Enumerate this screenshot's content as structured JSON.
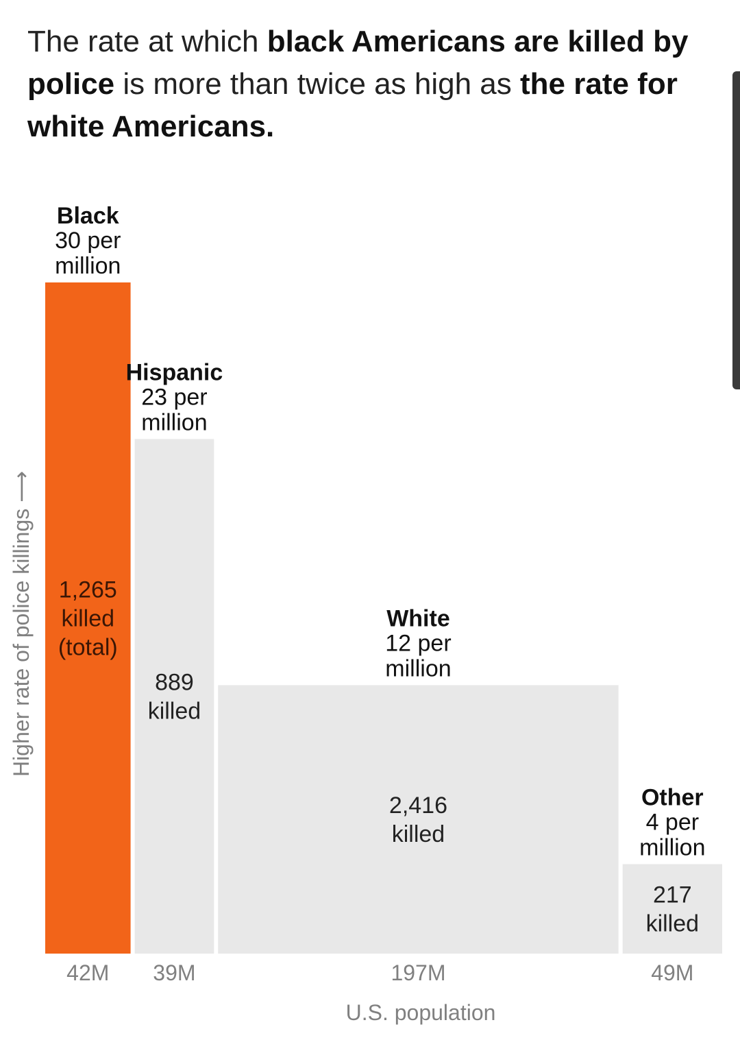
{
  "title": {
    "part1": "The rate at which ",
    "bold1": "black Americans are killed by police",
    "part2": " is more than twice as high as ",
    "bold2": "the rate for white Americans."
  },
  "chart_data": {
    "type": "bar",
    "variant": "marimekko (bar width = population, bar height = rate)",
    "xlabel": "U.S. population",
    "ylabel": "Higher rate of police killings ⟶",
    "ylim": [
      0,
      30
    ],
    "grid": false,
    "legend": "none",
    "categories": [
      "Black",
      "Hispanic",
      "White",
      "Other"
    ],
    "series": [
      {
        "name": "Rate (per million)",
        "values": [
          30,
          23,
          12,
          4
        ]
      },
      {
        "name": "Population (M)",
        "values": [
          42,
          39,
          197,
          49
        ]
      },
      {
        "name": "Killed",
        "values": [
          1265,
          889,
          2416,
          217
        ]
      }
    ],
    "bars": [
      {
        "name": "Black",
        "rate": 30,
        "rate_label": "30 per",
        "rate_unit": "million",
        "population": 42,
        "pop_label": "42M",
        "killed_lines": [
          "1,265",
          "killed",
          "(total)"
        ],
        "color": "#F26419",
        "highlight": true
      },
      {
        "name": "Hispanic",
        "rate": 23,
        "rate_label": "23 per",
        "rate_unit": "million",
        "population": 39,
        "pop_label": "39M",
        "killed_lines": [
          "889",
          "killed"
        ],
        "color": "#E8E8E8",
        "highlight": false
      },
      {
        "name": "White",
        "rate": 12,
        "rate_label": "12 per",
        "rate_unit": "million",
        "population": 197,
        "pop_label": "197M",
        "killed_lines": [
          "2,416",
          "killed"
        ],
        "color": "#E8E8E8",
        "highlight": false
      },
      {
        "name": "Other",
        "rate": 4,
        "rate_label": "4 per",
        "rate_unit": "million",
        "population": 49,
        "pop_label": "49M",
        "killed_lines": [
          "217",
          "killed"
        ],
        "color": "#E8E8E8",
        "highlight": false
      }
    ]
  }
}
